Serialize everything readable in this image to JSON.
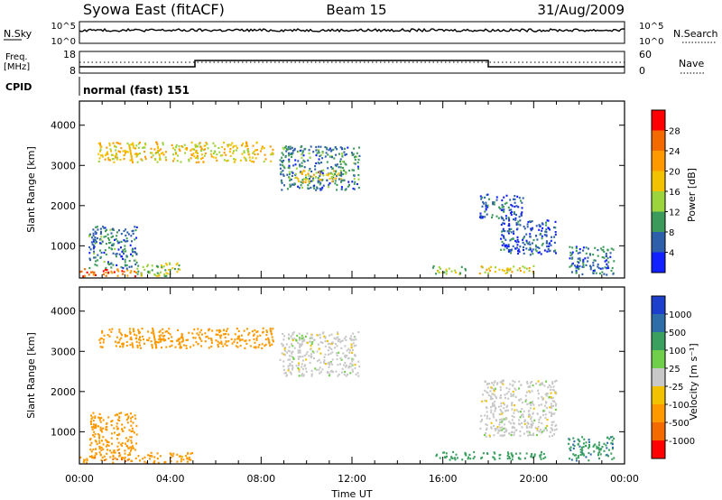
{
  "header": {
    "station": "Syowa East (fitACF)",
    "beam": "Beam 15",
    "date": "31/Aug/2009"
  },
  "top_panels": {
    "nsky": {
      "label": "N.Sky",
      "ticks": [
        "10^5",
        "10^0"
      ]
    },
    "nsearch": {
      "label": "N.Search",
      "ticks": [
        "10^5",
        "10^0"
      ]
    },
    "freq": {
      "label_line1": "Freq.",
      "label_line2": "[MHz]",
      "ticks": [
        "18",
        "8"
      ]
    },
    "nave": {
      "label": "Nave",
      "ticks": [
        "60",
        "0"
      ]
    },
    "cpid": {
      "label": "CPID",
      "value": "normal (fast) 151"
    }
  },
  "chart_data": [
    {
      "type": "heatmap",
      "name": "power",
      "ylabel": "Slant Range [km]",
      "y_ticks": [
        "1000",
        "2000",
        "3000",
        "4000"
      ],
      "ylim": [
        200,
        4600
      ],
      "colorbar": {
        "label": "Power [dB]",
        "ticks": [
          "28",
          "24",
          "20",
          "16",
          "12",
          "8",
          "4"
        ],
        "colors": [
          "#ff0000",
          "#f26a00",
          "#ff9900",
          "#f2c200",
          "#9bd43c",
          "#3c9a5a",
          "#2e5faa",
          "#1020ff"
        ]
      },
      "regions": [
        {
          "x": [
            0.0,
            2.5
          ],
          "y": [
            250,
            450
          ],
          "value": 26
        },
        {
          "x": [
            0.4,
            2.5
          ],
          "y": [
            450,
            1500
          ],
          "value": 8
        },
        {
          "x": [
            2.5,
            4.4
          ],
          "y": [
            250,
            600
          ],
          "value": 14
        },
        {
          "x": [
            8.8,
            12.3
          ],
          "y": [
            2400,
            3500
          ],
          "value": 8
        },
        {
          "x": [
            9.5,
            11.5
          ],
          "y": [
            2600,
            2900
          ],
          "value": 18
        },
        {
          "x": [
            17.6,
            19.5
          ],
          "y": [
            1700,
            2300
          ],
          "value": 6
        },
        {
          "x": [
            18.5,
            21.0
          ],
          "y": [
            800,
            1700
          ],
          "value": 5
        },
        {
          "x": [
            17.5,
            20.0
          ],
          "y": [
            320,
            520
          ],
          "value": 18
        },
        {
          "x": [
            15.5,
            17.0
          ],
          "y": [
            320,
            520
          ],
          "value": 14
        },
        {
          "x": [
            21.5,
            23.5
          ],
          "y": [
            300,
            1000
          ],
          "value": 7
        },
        {
          "x": [
            0.8,
            8.5
          ],
          "y": [
            3100,
            3600
          ],
          "value": 18
        }
      ]
    },
    {
      "type": "heatmap",
      "name": "velocity",
      "ylabel": "Slant Range [km]",
      "y_ticks": [
        "1000",
        "2000",
        "3000",
        "4000"
      ],
      "ylim": [
        200,
        4600
      ],
      "colorbar": {
        "label": "Velocity [m s⁻¹]",
        "ticks": [
          "1000",
          "500",
          "100",
          "25",
          "-25",
          "-100",
          "-500",
          "-1000"
        ],
        "colors": [
          "#1c3fcc",
          "#2e6ea8",
          "#3aa060",
          "#6fcf4a",
          "#c8c8c8",
          "#f2c200",
          "#ff9900",
          "#f26a00",
          "#ff0000"
        ]
      },
      "regions": [
        {
          "x": [
            0.0,
            2.5
          ],
          "y": [
            250,
            500
          ],
          "value": -400
        },
        {
          "x": [
            0.4,
            2.5
          ],
          "y": [
            500,
            1500
          ],
          "value": -300
        },
        {
          "x": [
            2.5,
            5.0
          ],
          "y": [
            250,
            500
          ],
          "value": -150
        },
        {
          "x": [
            8.8,
            12.3
          ],
          "y": [
            2400,
            3500
          ],
          "value": 0
        },
        {
          "x": [
            17.6,
            21.0
          ],
          "y": [
            900,
            2300
          ],
          "value": 0
        },
        {
          "x": [
            15.5,
            20.5
          ],
          "y": [
            320,
            520
          ],
          "value": 200
        },
        {
          "x": [
            21.5,
            23.5
          ],
          "y": [
            300,
            900
          ],
          "value": 400
        },
        {
          "x": [
            0.8,
            8.5
          ],
          "y": [
            3100,
            3600
          ],
          "value": -200
        }
      ]
    }
  ],
  "x_axis": {
    "label": "Time UT",
    "ticks": [
      "00:00",
      "04:00",
      "08:00",
      "12:00",
      "16:00",
      "20:00",
      "00:00"
    ],
    "xlim": [
      0,
      24
    ]
  }
}
